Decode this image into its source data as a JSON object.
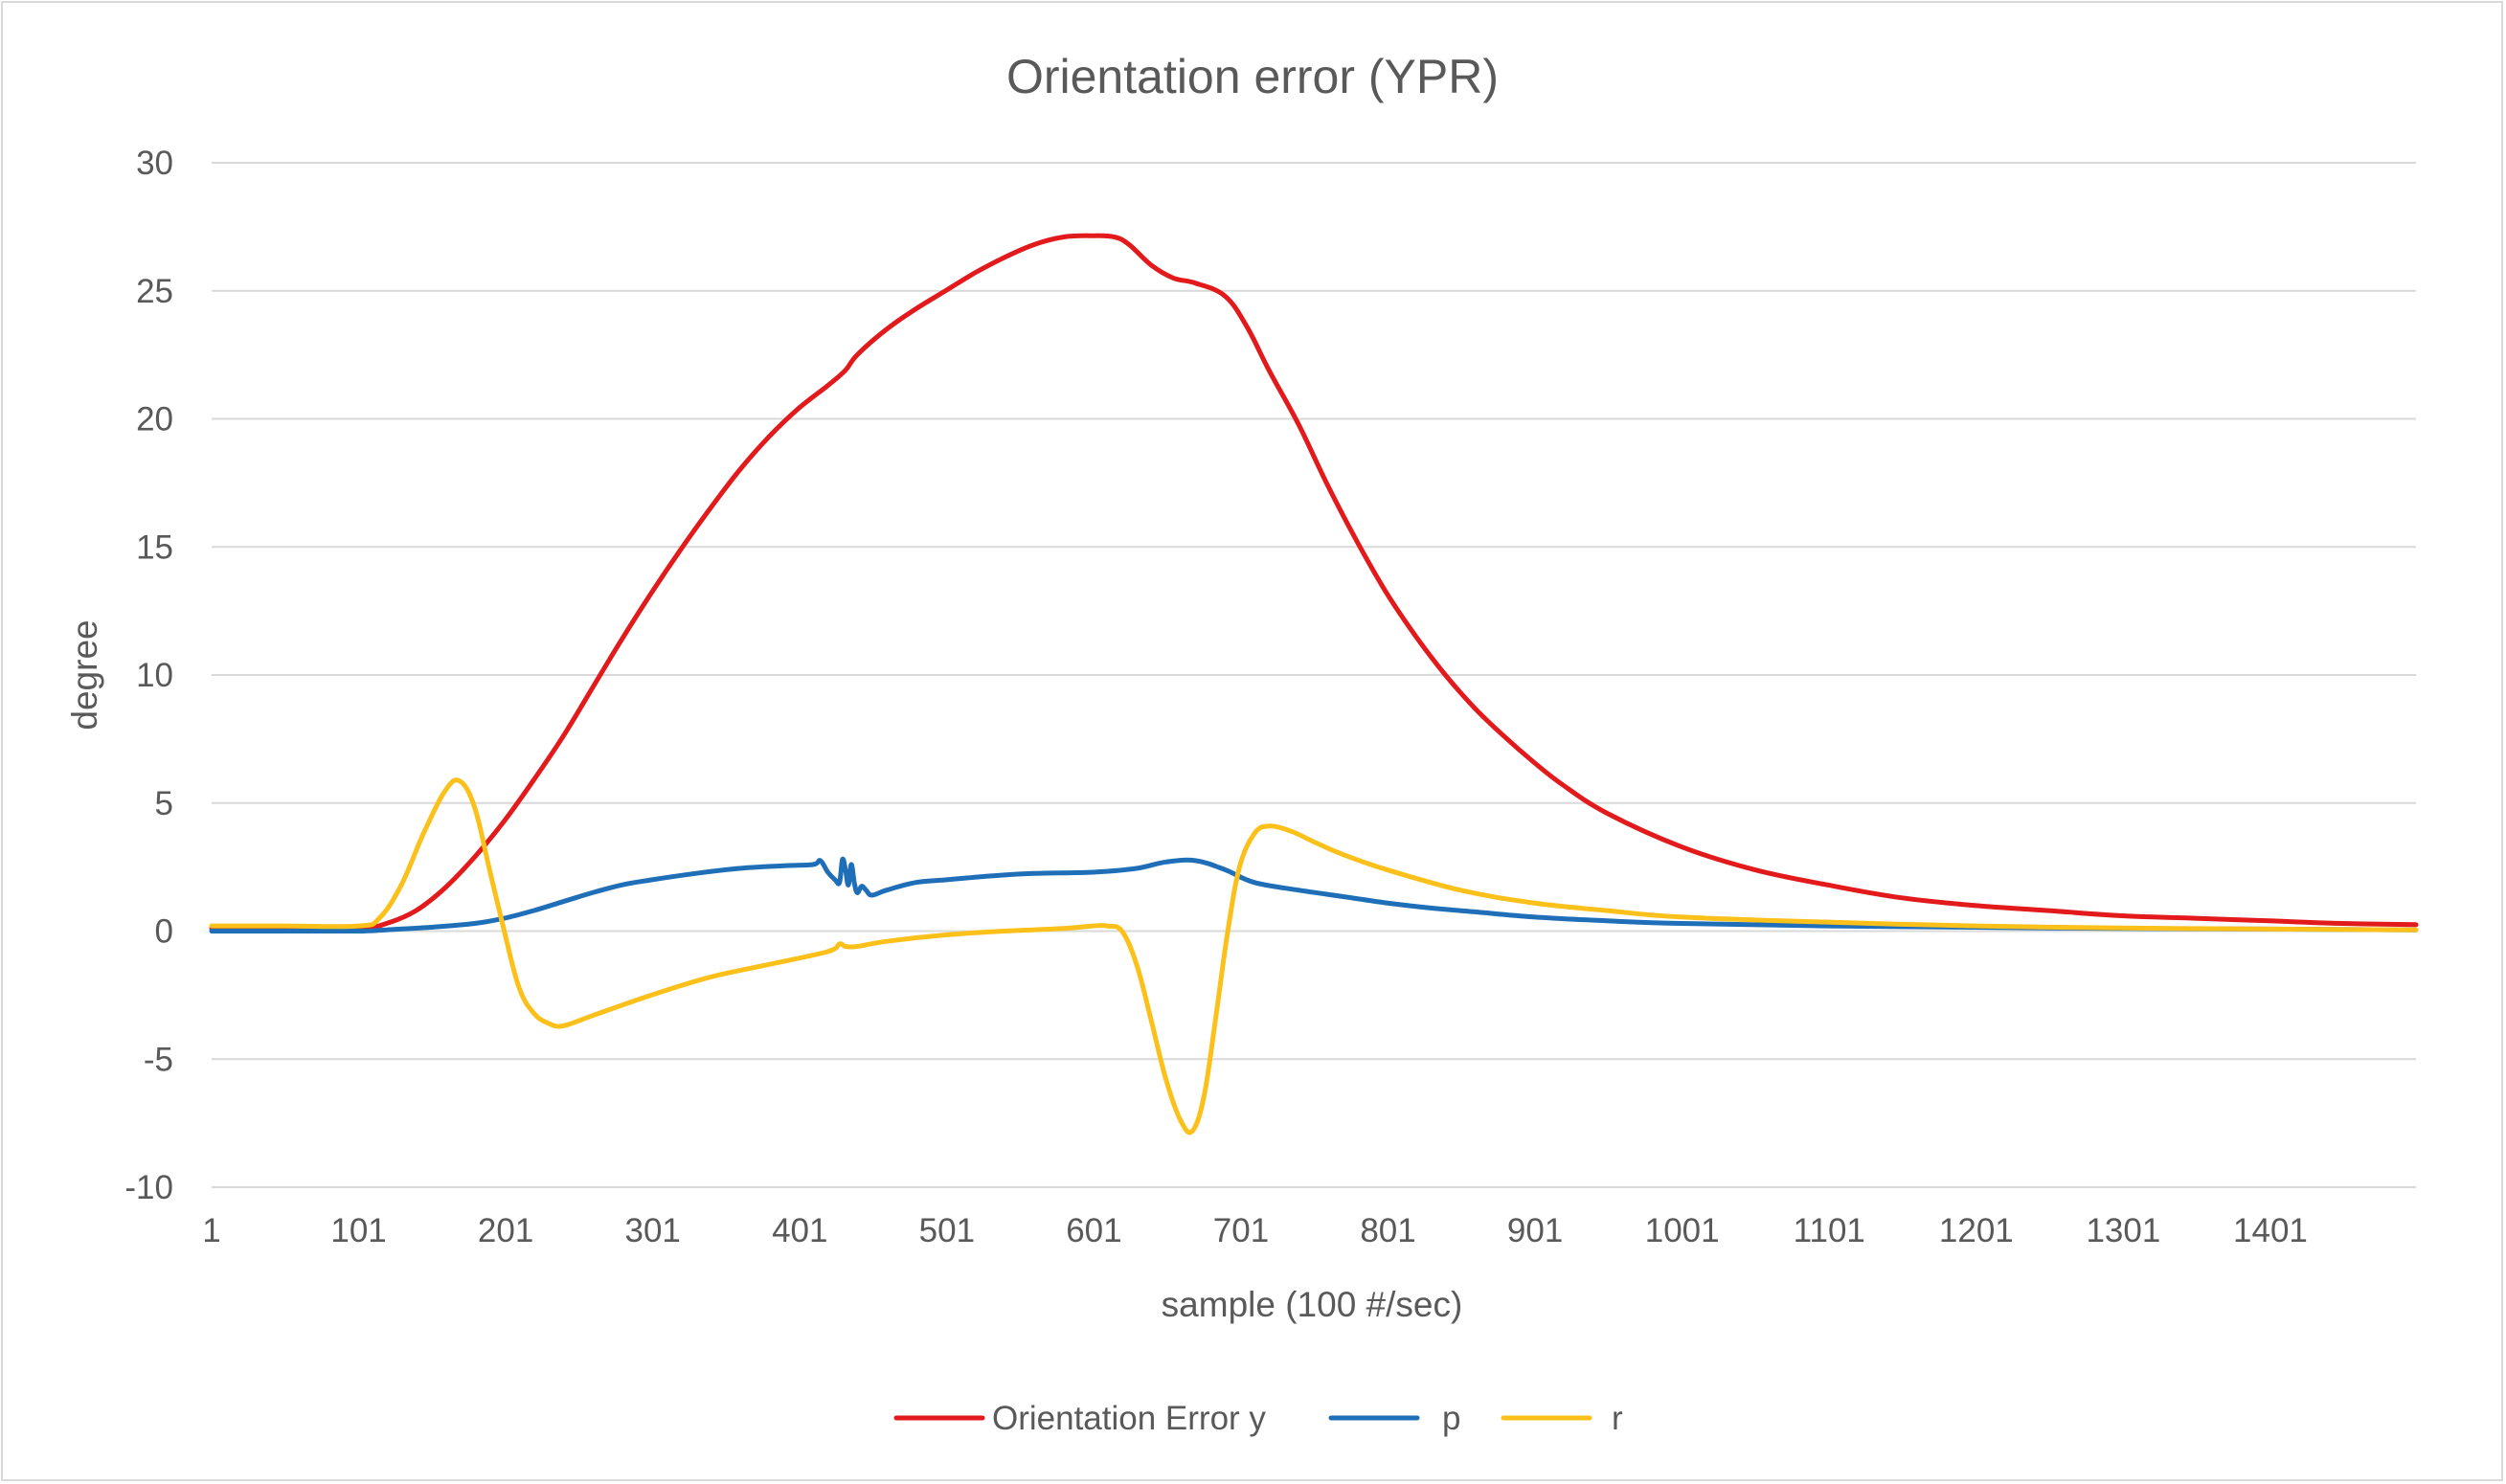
{
  "chart_data": {
    "type": "line",
    "title": "Orientation error (YPR)",
    "xlabel": "sample (100 #/sec)",
    "ylabel": "degree",
    "ylim": [
      -10,
      30
    ],
    "yticks": [
      30,
      25,
      20,
      15,
      10,
      5,
      0,
      -5,
      -10
    ],
    "ytick_labels": [
      "30",
      "25",
      "20",
      "15",
      "10",
      "5",
      "0",
      "-5",
      "-10"
    ],
    "xlim": [
      1,
      1500
    ],
    "xtick_labels": [
      "1",
      "101",
      "201",
      "301",
      "401",
      "501",
      "601",
      "701",
      "801",
      "901",
      "1001",
      "1101",
      "1201",
      "1301",
      "1401"
    ],
    "xticks": [
      1,
      101,
      201,
      301,
      401,
      501,
      601,
      701,
      801,
      901,
      1001,
      1101,
      1201,
      1301,
      1401
    ],
    "grid": true,
    "legend_position": "bottom",
    "series": [
      {
        "name": "Orientation Error y",
        "color": "#e31a1c",
        "x": [
          1,
          50,
          101,
          120,
          140,
          160,
          180,
          200,
          220,
          240,
          260,
          280,
          300,
          320,
          340,
          360,
          380,
          400,
          420,
          432,
          440,
          460,
          480,
          500,
          520,
          540,
          560,
          580,
          600,
          615,
          625,
          640,
          655,
          670,
          690,
          705,
          720,
          740,
          760,
          780,
          800,
          820,
          840,
          860,
          880,
          900,
          920,
          950,
          1000,
          1050,
          1100,
          1150,
          1200,
          1250,
          1300,
          1350,
          1400,
          1450,
          1500
        ],
        "values": [
          0.1,
          0.1,
          0.1,
          0.3,
          0.8,
          1.7,
          2.9,
          4.3,
          5.9,
          7.6,
          9.5,
          11.4,
          13.2,
          14.9,
          16.5,
          18.0,
          19.3,
          20.4,
          21.3,
          21.9,
          22.5,
          23.5,
          24.3,
          25.0,
          25.7,
          26.3,
          26.8,
          27.1,
          27.15,
          27.1,
          26.8,
          26.0,
          25.5,
          25.3,
          24.8,
          23.6,
          21.9,
          19.8,
          17.4,
          15.2,
          13.2,
          11.5,
          10.0,
          8.7,
          7.6,
          6.6,
          5.7,
          4.6,
          3.3,
          2.4,
          1.8,
          1.3,
          1.0,
          0.8,
          0.6,
          0.5,
          0.4,
          0.3,
          0.25
        ]
      },
      {
        "name": "p",
        "color": "#1f6fb8",
        "x": [
          1,
          50,
          101,
          120,
          150,
          180,
          200,
          220,
          240,
          260,
          280,
          300,
          330,
          360,
          390,
          410,
          415,
          420,
          425,
          428,
          430,
          432,
          434,
          436,
          438,
          440,
          443,
          446,
          450,
          460,
          480,
          500,
          530,
          560,
          600,
          630,
          650,
          670,
          690,
          710,
          740,
          770,
          800,
          830,
          860,
          900,
          950,
          1000,
          1100,
          1200,
          1300,
          1400,
          1500
        ],
        "values": [
          0.0,
          0.0,
          0.0,
          0.05,
          0.15,
          0.3,
          0.5,
          0.8,
          1.15,
          1.5,
          1.8,
          2.0,
          2.25,
          2.45,
          2.55,
          2.6,
          2.75,
          2.3,
          2.0,
          1.9,
          2.8,
          2.4,
          1.8,
          2.6,
          1.9,
          1.5,
          1.75,
          1.6,
          1.4,
          1.6,
          1.9,
          2.0,
          2.15,
          2.25,
          2.3,
          2.45,
          2.7,
          2.75,
          2.4,
          1.9,
          1.6,
          1.35,
          1.1,
          0.9,
          0.75,
          0.55,
          0.4,
          0.3,
          0.2,
          0.15,
          0.1,
          0.08,
          0.05
        ]
      },
      {
        "name": "r",
        "color": "#fbc01a",
        "x": [
          1,
          50,
          101,
          115,
          130,
          145,
          160,
          170,
          180,
          190,
          200,
          210,
          220,
          230,
          240,
          260,
          300,
          340,
          380,
          420,
          428,
          432,
          440,
          460,
          500,
          540,
          580,
          600,
          610,
          620,
          630,
          640,
          650,
          660,
          668,
          676,
          684,
          692,
          700,
          710,
          720,
          735,
          750,
          770,
          800,
          850,
          900,
          950,
          1000,
          1100,
          1200,
          1300,
          1400,
          1500
        ],
        "values": [
          0.2,
          0.2,
          0.2,
          0.5,
          1.8,
          3.8,
          5.5,
          5.85,
          4.8,
          2.4,
          0.0,
          -2.2,
          -3.2,
          -3.6,
          -3.7,
          -3.3,
          -2.5,
          -1.8,
          -1.3,
          -0.8,
          -0.5,
          -0.6,
          -0.6,
          -0.4,
          -0.15,
          0.0,
          0.1,
          0.2,
          0.2,
          0.0,
          -1.3,
          -3.5,
          -5.8,
          -7.4,
          -7.8,
          -6.4,
          -3.3,
          0.0,
          2.5,
          3.8,
          4.1,
          3.9,
          3.5,
          3.0,
          2.4,
          1.6,
          1.1,
          0.8,
          0.55,
          0.35,
          0.2,
          0.12,
          0.08,
          0.05
        ]
      }
    ]
  }
}
